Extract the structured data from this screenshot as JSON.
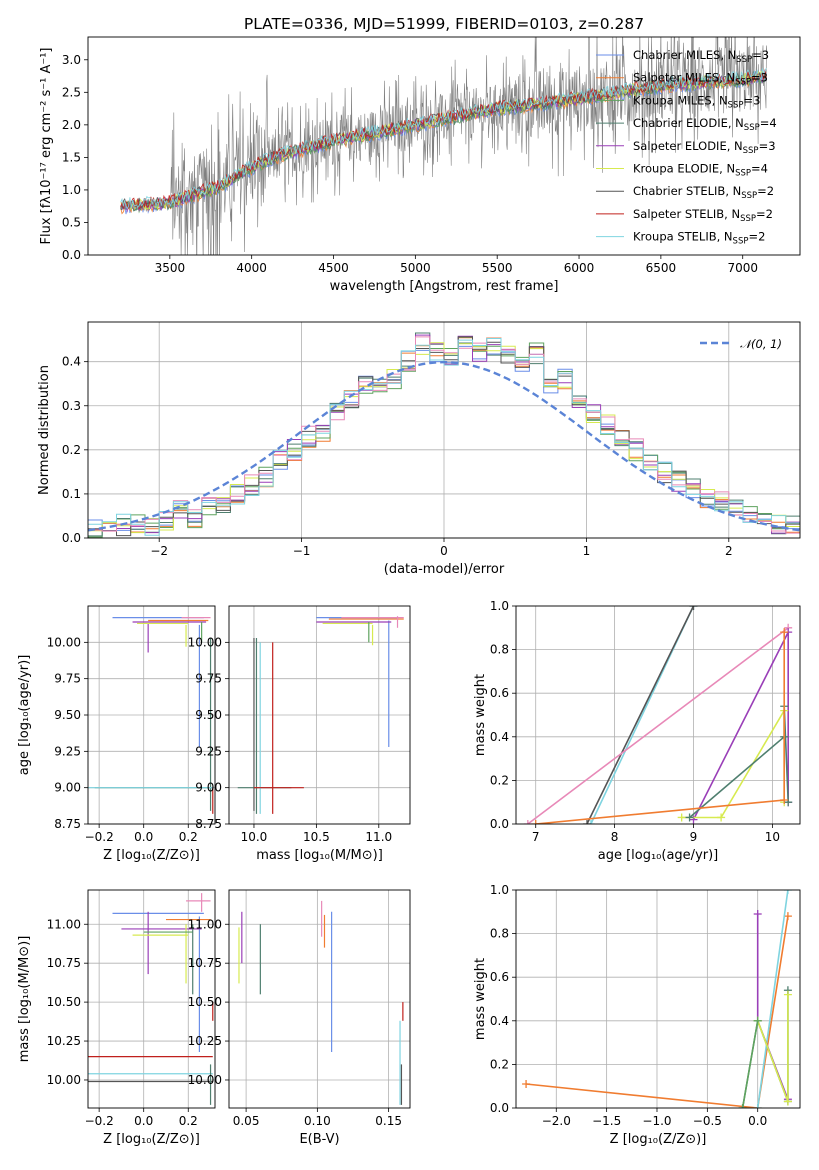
{
  "title": "PLATE=0336, MJD=51999, FIBERID=0103, z=0.287",
  "chart_data": [
    {
      "id": "spectrum",
      "type": "line",
      "xlabel": "wavelength [Angstrom, rest frame]",
      "ylabel": "Flux [fλ10⁻¹⁷ erg cm⁻² s⁻¹ A⁻¹]",
      "xlim": [
        3000,
        7350
      ],
      "ylim": [
        0,
        3.35
      ],
      "xticks": [
        3500,
        4000,
        4500,
        5000,
        5500,
        6000,
        6500,
        7000
      ],
      "yticks": [
        0.0,
        0.5,
        1.0,
        1.5,
        2.0,
        2.5,
        3.0
      ],
      "data_color": "#808080",
      "model_continuum": {
        "x": [
          3200,
          3500,
          3800,
          4000,
          4200,
          4500,
          5000,
          5500,
          6000,
          6500,
          7000,
          7150
        ],
        "y": [
          0.75,
          0.8,
          1.05,
          1.35,
          1.55,
          1.75,
          2.0,
          2.25,
          2.4,
          2.6,
          2.7,
          2.75
        ]
      },
      "legend": {
        "placement": "upper right",
        "entries": [
          {
            "name": "Chabrier MILES, N",
            "sub": "SSP",
            "eq": "=3",
            "color": "#6a8ee8"
          },
          {
            "name": "Salpeter MILES, N",
            "sub": "SSP",
            "eq": "=3",
            "color": "#f07c30"
          },
          {
            "name": "Kroupa MILES, N",
            "sub": "SSP",
            "eq": "=3",
            "color": "#5fa35f"
          },
          {
            "name": "Chabrier ELODIE, N",
            "sub": "SSP",
            "eq": "=4",
            "color": "#4f7f6f"
          },
          {
            "name": "Salpeter ELODIE, N",
            "sub": "SSP",
            "eq": "=3",
            "color": "#9a3fb8"
          },
          {
            "name": "Kroupa ELODIE, N",
            "sub": "SSP",
            "eq": "=4",
            "color": "#d7ea50"
          },
          {
            "name": "Chabrier STELIB, N",
            "sub": "SSP",
            "eq": "=2",
            "color": "#555555"
          },
          {
            "name": "Salpeter STELIB, N",
            "sub": "SSP",
            "eq": "=2",
            "color": "#c0201c"
          },
          {
            "name": "Kroupa STELIB, N",
            "sub": "SSP",
            "eq": "=2",
            "color": "#7fd4e0"
          }
        ]
      }
    },
    {
      "id": "residuals",
      "type": "histogram",
      "xlabel": "(data-model)/error",
      "ylabel": "Normed distribution",
      "xlim": [
        -2.5,
        2.5
      ],
      "ylim": [
        0,
        0.49
      ],
      "xticks": [
        -2,
        -1,
        0,
        1,
        2
      ],
      "yticks": [
        0.0,
        0.1,
        0.2,
        0.3,
        0.4
      ],
      "bin_width": 0.1,
      "legend": {
        "placement": "upper right",
        "entries": [
          {
            "name": "𝒩(0, 1)",
            "color": "#5b84d6",
            "style": "dashed"
          }
        ]
      },
      "histogram": {
        "x_start": -2.5,
        "values": [
          0.02,
          0.02,
          0.03,
          0.03,
          0.03,
          0.04,
          0.06,
          0.04,
          0.07,
          0.08,
          0.1,
          0.12,
          0.14,
          0.18,
          0.2,
          0.23,
          0.24,
          0.29,
          0.31,
          0.35,
          0.35,
          0.36,
          0.4,
          0.44,
          0.42,
          0.41,
          0.44,
          0.42,
          0.43,
          0.42,
          0.4,
          0.42,
          0.35,
          0.36,
          0.3,
          0.28,
          0.26,
          0.22,
          0.2,
          0.17,
          0.15,
          0.13,
          0.11,
          0.09,
          0.08,
          0.07,
          0.05,
          0.04,
          0.03,
          0.03
        ]
      }
    },
    {
      "id": "age_vs_Z",
      "type": "errorbar",
      "xlabel": "Z [log₁₀(Z/Z⊙)]",
      "ylabel": "age  [log₁₀(age/yr)]",
      "xlim": [
        -0.25,
        0.32
      ],
      "ylim": [
        8.75,
        10.25
      ],
      "xticks": [
        -0.2,
        0.0,
        0.2
      ],
      "xticklabels": [
        "−0.2",
        "0.0",
        "0.2"
      ],
      "yticks": [
        8.75,
        9.0,
        9.25,
        9.5,
        9.75,
        10.0
      ],
      "yticklabels": [
        "8.75",
        "9.00",
        "9.25",
        "9.50",
        "9.75",
        "10.00"
      ]
    },
    {
      "id": "age_vs_mass",
      "type": "errorbar",
      "xlabel": "mass [log₁₀(M/M⊙)]",
      "xlim": [
        9.8,
        11.25
      ],
      "ylim": [
        8.75,
        10.25
      ],
      "xticks": [
        10.0,
        10.5,
        11.0
      ],
      "xticklabels": [
        "10.0",
        "10.5",
        "11.0"
      ],
      "yticks": [
        8.75,
        9.0,
        9.25,
        9.5,
        9.75,
        10.0
      ],
      "yticklabels": [
        "8.75",
        "9.00",
        "9.25",
        "9.50",
        "9.75",
        "10.00"
      ]
    },
    {
      "id": "weight_vs_age",
      "type": "line",
      "xlabel": "age  [log₁₀(age/yr)]",
      "ylabel": "mass weight",
      "xlim": [
        6.75,
        10.35
      ],
      "ylim": [
        0,
        1.0
      ],
      "xticks": [
        7,
        8,
        9,
        10
      ],
      "yticks": [
        0.0,
        0.2,
        0.4,
        0.6,
        0.8,
        1.0
      ],
      "yticklabels": [
        "0.0",
        "0.2",
        "0.4",
        "0.6",
        "0.8",
        "1.0"
      ],
      "series": [
        {
          "color": "#7fd4e0",
          "x": [
            7.7,
            9.0
          ],
          "y": [
            0.0,
            1.0
          ]
        },
        {
          "color": "#555555",
          "x": [
            7.65,
            9.0
          ],
          "y": [
            0.0,
            1.0
          ]
        },
        {
          "color": "#e889b8",
          "x": [
            6.9,
            10.2
          ],
          "y": [
            0.0,
            0.9
          ]
        },
        {
          "color": "#9a3fb8",
          "x": [
            9.0,
            10.2,
            10.2
          ],
          "y": [
            0.02,
            0.88,
            0.1
          ]
        },
        {
          "color": "#d7ea50",
          "x": [
            8.85,
            9.35,
            10.15,
            10.15
          ],
          "y": [
            0.03,
            0.03,
            0.52,
            0.1
          ]
        },
        {
          "color": "#4f7f6f",
          "x": [
            8.95,
            10.15,
            10.15,
            10.2
          ],
          "y": [
            0.03,
            0.4,
            0.54,
            0.1
          ]
        },
        {
          "color": "#f07c30",
          "x": [
            7.0,
            10.15,
            10.15
          ],
          "y": [
            0.0,
            0.11,
            0.88
          ]
        }
      ]
    },
    {
      "id": "mass_vs_Z",
      "type": "errorbar",
      "xlabel": "Z [log₁₀(Z/Z⊙)]",
      "ylabel": "mass [log₁₀(M/M⊙)]",
      "xlim": [
        -0.25,
        0.32
      ],
      "ylim": [
        9.82,
        11.22
      ],
      "xticks": [
        -0.2,
        0.0,
        0.2
      ],
      "xticklabels": [
        "−0.2",
        "0.0",
        "0.2"
      ],
      "yticks": [
        10.0,
        10.25,
        10.5,
        10.75,
        11.0
      ],
      "yticklabels": [
        "10.00",
        "10.25",
        "10.50",
        "10.75",
        "11.00"
      ]
    },
    {
      "id": "mass_vs_EBV",
      "type": "errorbar",
      "xlabel": "E(B-V)",
      "xlim": [
        0.038,
        0.165
      ],
      "ylim": [
        9.82,
        11.22
      ],
      "xticks": [
        0.05,
        0.1,
        0.15
      ],
      "xticklabels": [
        "0.05",
        "0.10",
        "0.15"
      ],
      "yticks": [
        10.0,
        10.25,
        10.5,
        10.75,
        11.0
      ],
      "yticklabels": [
        "10.00",
        "10.25",
        "10.50",
        "10.75",
        "11.00"
      ]
    },
    {
      "id": "weight_vs_Z",
      "type": "line",
      "xlabel": "Z [log₁₀(Z/Z⊙)]",
      "ylabel": "mass weight",
      "xlim": [
        -2.4,
        0.42
      ],
      "ylim": [
        0,
        1.0
      ],
      "xticks": [
        -2.0,
        -1.5,
        -1.0,
        -0.5,
        0.0
      ],
      "xticklabels": [
        "−2.0",
        "−1.5",
        "−1.0",
        "−0.5",
        "0.0"
      ],
      "yticks": [
        0.0,
        0.2,
        0.4,
        0.6,
        0.8,
        1.0
      ],
      "yticklabels": [
        "0.0",
        "0.2",
        "0.4",
        "0.6",
        "0.8",
        "1.0"
      ],
      "series": [
        {
          "color": "#f07c30",
          "x": [
            -2.3,
            0.0,
            0.3
          ],
          "y": [
            0.11,
            0.0,
            0.88
          ]
        },
        {
          "color": "#7fd4e0",
          "x": [
            0.0,
            0.3
          ],
          "y": [
            0.0,
            1.0
          ]
        },
        {
          "color": "#9a3fb8",
          "x": [
            0.0,
            0.0,
            0.3
          ],
          "y": [
            0.89,
            0.4,
            0.04
          ]
        },
        {
          "color": "#4f7f6f",
          "x": [
            -0.15,
            0.0,
            0.3,
            0.3
          ],
          "y": [
            0.0,
            0.4,
            0.03,
            0.54
          ]
        },
        {
          "color": "#d7ea50",
          "x": [
            0.0,
            0.3,
            0.3
          ],
          "y": [
            0.4,
            0.03,
            0.52
          ]
        },
        {
          "color": "#5fa35f",
          "x": [
            -0.15,
            0.0
          ],
          "y": [
            0.0,
            0.4
          ]
        }
      ]
    }
  ]
}
